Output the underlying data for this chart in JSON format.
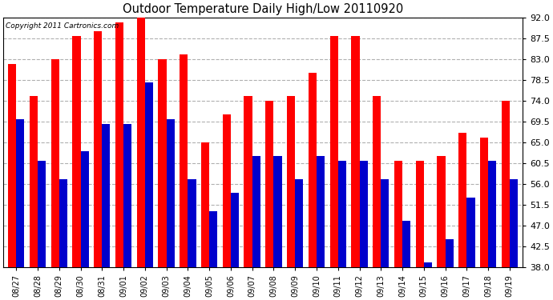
{
  "title": "Outdoor Temperature Daily High/Low 20110920",
  "copyright": "Copyright 2011 Cartronics.com",
  "dates": [
    "08/27",
    "08/28",
    "08/29",
    "08/30",
    "08/31",
    "09/01",
    "09/02",
    "09/03",
    "09/04",
    "09/05",
    "09/06",
    "09/07",
    "09/08",
    "09/09",
    "09/10",
    "09/11",
    "09/12",
    "09/13",
    "09/14",
    "09/15",
    "09/16",
    "09/17",
    "09/18",
    "09/19"
  ],
  "highs": [
    82,
    75,
    83,
    88,
    89,
    91,
    92,
    83,
    84,
    65,
    71,
    75,
    74,
    75,
    80,
    88,
    88,
    75,
    61,
    61,
    62,
    67,
    66,
    74
  ],
  "lows": [
    70,
    61,
    57,
    63,
    69,
    69,
    78,
    70,
    57,
    50,
    54,
    62,
    62,
    57,
    62,
    61,
    61,
    57,
    48,
    39,
    44,
    53,
    61,
    57
  ],
  "high_color": "#ff0000",
  "low_color": "#0000cc",
  "bg_color": "#ffffff",
  "grid_color": "#b0b0b0",
  "ylim": [
    38,
    92
  ],
  "yticks": [
    38.0,
    42.5,
    47.0,
    51.5,
    56.0,
    60.5,
    65.0,
    69.5,
    74.0,
    78.5,
    83.0,
    87.5,
    92.0
  ],
  "bar_width": 0.38,
  "figsize": [
    6.9,
    3.75
  ],
  "dpi": 100
}
